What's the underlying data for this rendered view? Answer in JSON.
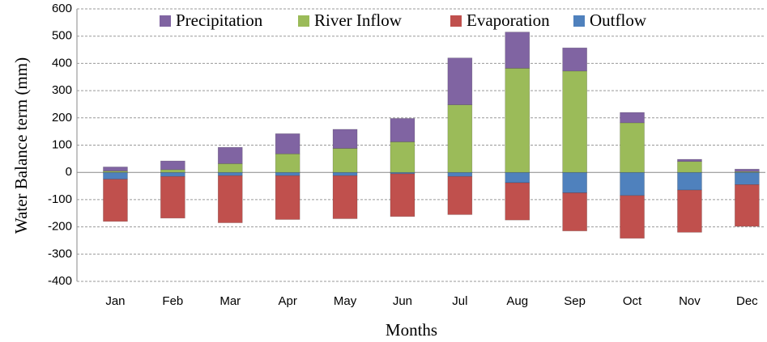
{
  "chart_data": {
    "type": "stacked_bar",
    "y_label": "Water Balance term (mm)",
    "x_label": "Months",
    "categories": [
      "Jan",
      "Feb",
      "Mar",
      "Apr",
      "May",
      "Jun",
      "Jul",
      "Aug",
      "Sep",
      "Oct",
      "Nov",
      "Dec"
    ],
    "series": [
      {
        "name": "Precipitation",
        "color": "#8064a2",
        "values": [
          15,
          32,
          60,
          74,
          70,
          86,
          172,
          133,
          85,
          38,
          8,
          9
        ]
      },
      {
        "name": "River Inflow",
        "color": "#9bbb59",
        "values": [
          5,
          10,
          32,
          68,
          88,
          112,
          248,
          382,
          372,
          182,
          40,
          3
        ]
      },
      {
        "name": "Evaporation",
        "color": "#c0504d",
        "values": [
          -155,
          -153,
          -173,
          -161,
          -158,
          -157,
          -140,
          -137,
          -140,
          -157,
          -155,
          -153
        ]
      },
      {
        "name": "Outflow",
        "color": "#4f81bd",
        "values": [
          -25,
          -15,
          -12,
          -12,
          -12,
          -5,
          -15,
          -38,
          -75,
          -85,
          -65,
          -45
        ]
      }
    ],
    "ylim": [
      -400,
      600
    ],
    "yticks": [
      -400,
      -300,
      -200,
      -100,
      0,
      100,
      200,
      300,
      400,
      500,
      600
    ],
    "grid": true,
    "legend": "top"
  }
}
